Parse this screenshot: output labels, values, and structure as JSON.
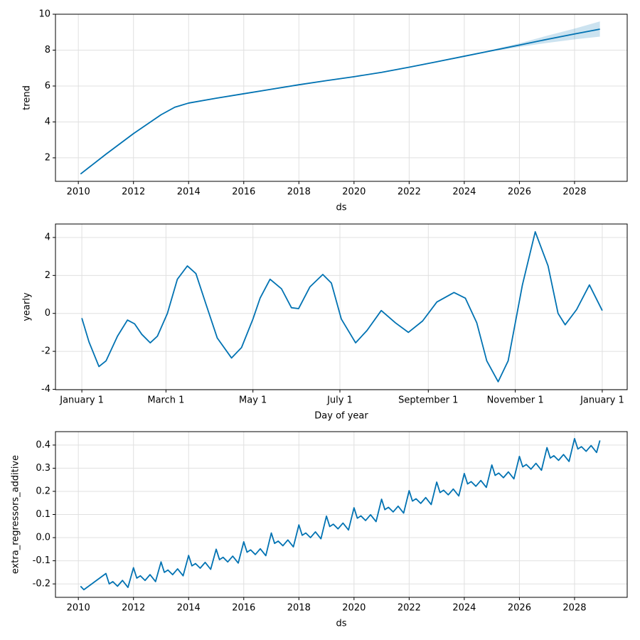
{
  "chart_data": [
    {
      "type": "line",
      "xlabel": "ds",
      "ylabel": "trend",
      "color": "#0072B2",
      "band_color": "#0072B2",
      "grid": true,
      "x": [
        2010.08,
        2011,
        2012,
        2013,
        2013.5,
        2014,
        2015,
        2016,
        2017,
        2018,
        2019,
        2020,
        2021,
        2022,
        2023,
        2024,
        2025,
        2026,
        2027,
        2028,
        2028.92
      ],
      "values": [
        1.1,
        2.2,
        3.35,
        4.4,
        4.82,
        5.05,
        5.32,
        5.57,
        5.82,
        6.07,
        6.3,
        6.52,
        6.76,
        7.05,
        7.35,
        7.66,
        7.97,
        8.28,
        8.6,
        8.9,
        9.17
      ],
      "lower": [
        1.1,
        2.2,
        3.35,
        4.4,
        4.82,
        5.05,
        5.32,
        5.57,
        5.82,
        6.07,
        6.3,
        6.52,
        6.76,
        7.05,
        7.35,
        7.66,
        7.93,
        8.18,
        8.4,
        8.6,
        8.75
      ],
      "upper": [
        1.1,
        2.2,
        3.35,
        4.4,
        4.82,
        5.05,
        5.32,
        5.57,
        5.82,
        6.07,
        6.3,
        6.52,
        6.76,
        7.05,
        7.35,
        7.66,
        8.02,
        8.38,
        8.8,
        9.2,
        9.6
      ],
      "xlim": [
        2009.17,
        2029.91
      ],
      "ylim": [
        0.69,
        10
      ],
      "xticks": [
        2010,
        2012,
        2014,
        2016,
        2018,
        2020,
        2022,
        2024,
        2026,
        2028
      ],
      "yticks": [
        2,
        4,
        6,
        8,
        10
      ]
    },
    {
      "type": "line",
      "xlabel": "Day of year",
      "ylabel": "yearly",
      "color": "#0072B2",
      "grid": true,
      "x": [
        0,
        5,
        12,
        17,
        25,
        32,
        37,
        42,
        48,
        53,
        60,
        67,
        74,
        80,
        87,
        95,
        105,
        112,
        120,
        125,
        132,
        140,
        147,
        152,
        160,
        169,
        175,
        182,
        192,
        200,
        210,
        220,
        229,
        239,
        249,
        261,
        269,
        277,
        284,
        292,
        299,
        309,
        318,
        327,
        334,
        339,
        347,
        356,
        365
      ],
      "values": [
        -0.25,
        -1.5,
        -2.8,
        -2.5,
        -1.2,
        -0.35,
        -0.55,
        -1.1,
        -1.55,
        -1.2,
        0.0,
        1.8,
        2.5,
        2.1,
        0.5,
        -1.3,
        -2.35,
        -1.8,
        -0.3,
        0.8,
        1.8,
        1.3,
        0.3,
        0.25,
        1.4,
        2.05,
        1.6,
        -0.3,
        -1.55,
        -0.9,
        0.15,
        -0.5,
        -1.0,
        -0.4,
        0.6,
        1.1,
        0.8,
        -0.5,
        -2.5,
        -3.6,
        -2.5,
        1.5,
        4.3,
        2.5,
        0.0,
        -0.6,
        0.2,
        1.5,
        0.15
      ],
      "xlim": [
        -18.5,
        382.5
      ],
      "ylim": [
        -4.02,
        4.71
      ],
      "xticks": [
        {
          "value": 0,
          "label": "January 1"
        },
        {
          "value": 59,
          "label": "March 1"
        },
        {
          "value": 120,
          "label": "May 1"
        },
        {
          "value": 181,
          "label": "July 1"
        },
        {
          "value": 243,
          "label": "September 1"
        },
        {
          "value": 304,
          "label": "November 1"
        },
        {
          "value": 365,
          "label": "January 1"
        }
      ],
      "yticks": [
        -4,
        -2,
        0,
        2,
        4
      ]
    },
    {
      "type": "line",
      "xlabel": "ds",
      "ylabel": "extra_regressors_additive",
      "color": "#0072B2",
      "grid": true,
      "x": [
        2010.08,
        2010.2,
        2010.6,
        2011,
        2011.12,
        2011.25,
        2011.42,
        2011.6,
        2011.8,
        2012,
        2012.12,
        2012.25,
        2012.42,
        2012.6,
        2012.8,
        2013,
        2013.12,
        2013.25,
        2013.42,
        2013.6,
        2013.8,
        2014,
        2014.12,
        2014.25,
        2014.42,
        2014.6,
        2014.8,
        2015,
        2015.12,
        2015.25,
        2015.42,
        2015.6,
        2015.8,
        2016,
        2016.12,
        2016.25,
        2016.42,
        2016.6,
        2016.8,
        2017,
        2017.12,
        2017.25,
        2017.42,
        2017.6,
        2017.8,
        2018,
        2018.12,
        2018.25,
        2018.42,
        2018.6,
        2018.8,
        2019,
        2019.12,
        2019.25,
        2019.42,
        2019.6,
        2019.8,
        2020,
        2020.12,
        2020.25,
        2020.42,
        2020.6,
        2020.8,
        2021,
        2021.12,
        2021.25,
        2021.42,
        2021.6,
        2021.8,
        2022,
        2022.12,
        2022.25,
        2022.42,
        2022.6,
        2022.8,
        2023,
        2023.12,
        2023.25,
        2023.42,
        2023.6,
        2023.8,
        2024,
        2024.12,
        2024.25,
        2024.42,
        2024.6,
        2024.8,
        2025,
        2025.12,
        2025.25,
        2025.42,
        2025.6,
        2025.8,
        2026,
        2026.12,
        2026.25,
        2026.42,
        2026.6,
        2026.8,
        2027,
        2027.12,
        2027.25,
        2027.42,
        2027.6,
        2027.8,
        2028,
        2028.12,
        2028.25,
        2028.42,
        2028.6,
        2028.8,
        2028.92
      ],
      "values": [
        -0.21,
        -0.225,
        -0.19,
        -0.155,
        -0.2,
        -0.19,
        -0.21,
        -0.185,
        -0.215,
        -0.13,
        -0.175,
        -0.165,
        -0.185,
        -0.16,
        -0.19,
        -0.105,
        -0.15,
        -0.14,
        -0.16,
        -0.135,
        -0.165,
        -0.077,
        -0.122,
        -0.112,
        -0.132,
        -0.107,
        -0.137,
        -0.05,
        -0.095,
        -0.085,
        -0.105,
        -0.08,
        -0.11,
        -0.018,
        -0.063,
        -0.053,
        -0.073,
        -0.048,
        -0.078,
        0.02,
        -0.025,
        -0.015,
        -0.035,
        -0.01,
        -0.04,
        0.055,
        0.01,
        0.02,
        0,
        0.025,
        -0.005,
        0.093,
        0.048,
        0.058,
        0.038,
        0.063,
        0.033,
        0.129,
        0.084,
        0.094,
        0.074,
        0.099,
        0.069,
        0.166,
        0.121,
        0.131,
        0.111,
        0.136,
        0.106,
        0.203,
        0.158,
        0.168,
        0.148,
        0.173,
        0.143,
        0.24,
        0.195,
        0.205,
        0.185,
        0.21,
        0.18,
        0.277,
        0.232,
        0.242,
        0.222,
        0.247,
        0.217,
        0.314,
        0.269,
        0.279,
        0.259,
        0.284,
        0.254,
        0.351,
        0.306,
        0.316,
        0.296,
        0.321,
        0.291,
        0.389,
        0.344,
        0.354,
        0.334,
        0.359,
        0.329,
        0.428,
        0.383,
        0.393,
        0.373,
        0.398,
        0.368,
        0.42
      ],
      "xlim": [
        2009.17,
        2029.91
      ],
      "ylim": [
        -0.258,
        0.458
      ],
      "xticks": [
        2010,
        2012,
        2014,
        2016,
        2018,
        2020,
        2022,
        2024,
        2026,
        2028
      ],
      "yticks": [
        -0.2,
        -0.1,
        {
          "value": 0,
          "label": "0.0"
        },
        0.1,
        0.2,
        0.3,
        0.4
      ]
    }
  ]
}
